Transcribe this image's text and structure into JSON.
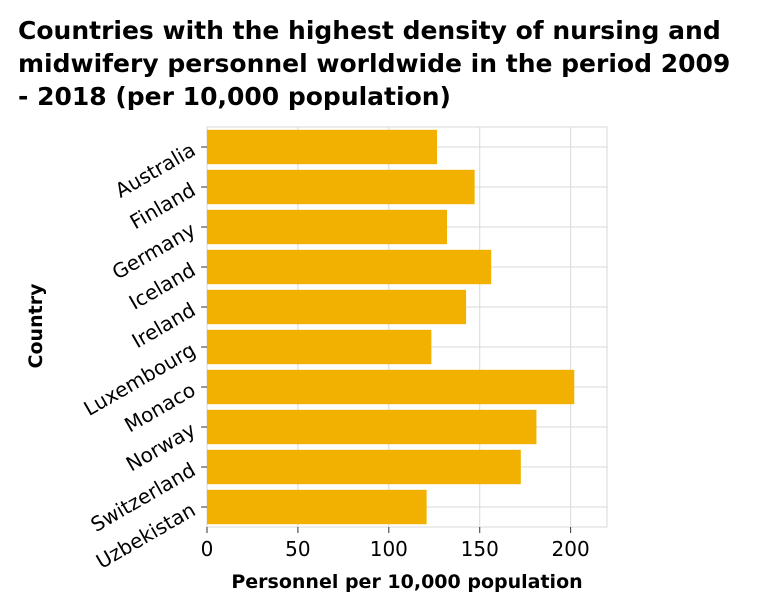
{
  "chart_data": {
    "type": "bar",
    "orientation": "horizontal",
    "title": "Countries with the highest density of nursing and midwifery personnel worldwide in the period 2009 - 2018 (per 10,000 population)",
    "xlabel": "Personnel per 10,000 population",
    "ylabel": "Country",
    "categories": [
      "Australia",
      "Finland",
      "Germany",
      "Iceland",
      "Ireland",
      "Luxembourg",
      "Monaco",
      "Norway",
      "Switzerland",
      "Uzbekistan"
    ],
    "values": [
      126.5,
      147.2,
      132.0,
      156.3,
      142.5,
      123.4,
      202.0,
      181.2,
      172.6,
      120.8
    ],
    "xlim": [
      0,
      220
    ],
    "xticks": [
      0,
      50,
      100,
      150,
      200
    ],
    "grid": true,
    "bar_color": "#f2b100",
    "grid_color": "#d9d9d9"
  }
}
